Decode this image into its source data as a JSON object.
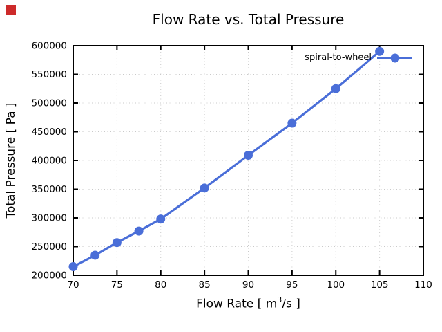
{
  "indicator": {
    "color": "#cd2a2a"
  },
  "chart_data": {
    "type": "line",
    "title": "Flow Rate vs. Total Pressure",
    "xlabel_prefix": "Flow Rate [ m",
    "xlabel_sup": "3",
    "xlabel_suffix": "/s ]",
    "ylabel": "Total Pressure [ Pa ]",
    "xlim": [
      70,
      110
    ],
    "ylim": [
      200000,
      600000
    ],
    "xticks": [
      70,
      75,
      80,
      85,
      90,
      95,
      100,
      105,
      110
    ],
    "yticks": [
      200000,
      250000,
      300000,
      350000,
      400000,
      450000,
      500000,
      550000,
      600000
    ],
    "grid": true,
    "grid_color": "#c9c9c9",
    "frame_color": "#000000",
    "legend_position": "top-right-inside",
    "series": [
      {
        "name": "spiral-to-wheel",
        "color": "#4a6ed8",
        "x": [
          70,
          72.5,
          75,
          77.5,
          80,
          85,
          90,
          95,
          100,
          105
        ],
        "y": [
          215000,
          235000,
          257000,
          277000,
          298000,
          352000,
          409000,
          465000,
          525000,
          590000
        ]
      }
    ]
  }
}
